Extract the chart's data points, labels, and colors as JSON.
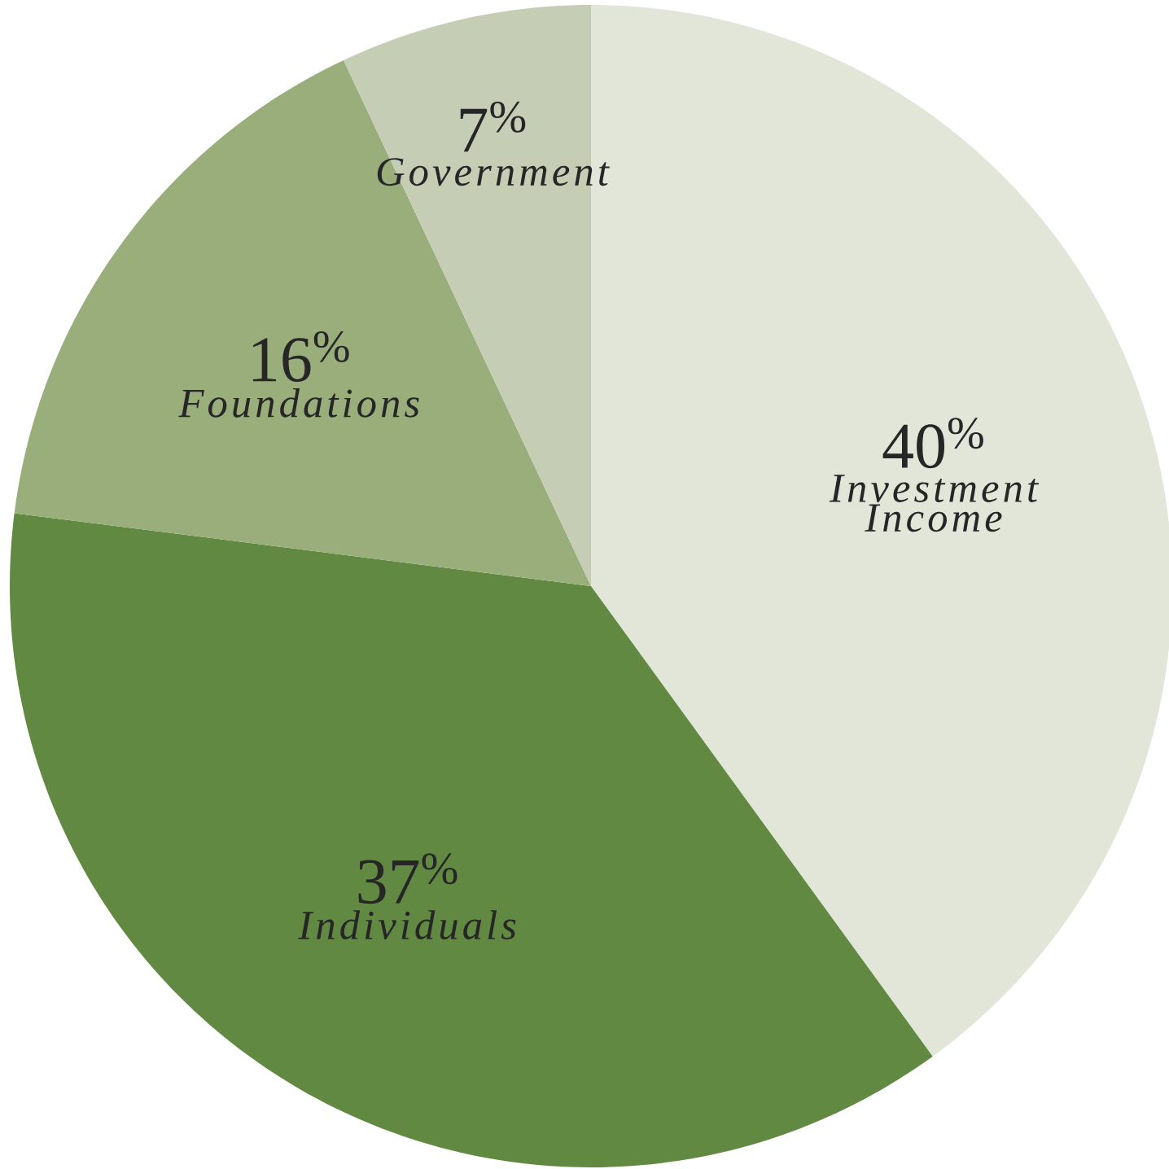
{
  "chart_data": {
    "type": "pie",
    "categories": [
      "Investment Income",
      "Individuals",
      "Foundations",
      "Government"
    ],
    "values": [
      40,
      37,
      16,
      7
    ],
    "colors": [
      "#e2e6d8",
      "#618942",
      "#9aae7c",
      "#c5cdb5"
    ],
    "value_labels": [
      "40$^{%}$",
      "37$^{%}$",
      "16$^{%}$",
      "7$^{%}$"
    ]
  }
}
